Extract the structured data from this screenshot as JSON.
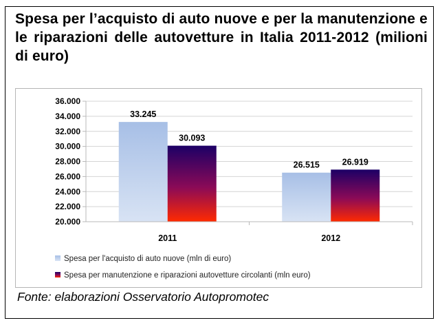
{
  "title": "Spesa per l’acquisto di auto nuove e per la manutenzione e le riparazioni delle autovetture in Italia 2011-2012 (milioni di euro)",
  "source": "Fonte: elaborazioni Osservatorio Autopromotec",
  "colors": {
    "series1_top": "#a7bfe6",
    "series1_bottom": "#d8e3f4",
    "series2_top": "#1c0066",
    "series2_mid": "#8b0a57",
    "series2_bottom": "#ff2a00",
    "axis": "#b8b8b8",
    "grid": "#d4d4d4"
  },
  "chart_data": {
    "type": "bar",
    "categories": [
      "2011",
      "2012"
    ],
    "series": [
      {
        "name": "Spesa per l'acquisto di auto nuove (mln di euro)",
        "values": [
          33245,
          26515
        ],
        "labels": [
          "33.245",
          "26.515"
        ]
      },
      {
        "name": "Spesa per manutenzione e riparazioni autovetture circolanti (mln euro)",
        "values": [
          30093,
          26919
        ],
        "labels": [
          "30.093",
          "26.919"
        ]
      }
    ],
    "ylim": [
      20000,
      36000
    ],
    "yticks": [
      20000,
      22000,
      24000,
      26000,
      28000,
      30000,
      32000,
      34000,
      36000
    ],
    "ytick_labels": [
      "20.000",
      "22.000",
      "24.000",
      "26.000",
      "28.000",
      "30.000",
      "32.000",
      "34.000",
      "36.000"
    ],
    "grid": true,
    "legend_position": "bottom-left",
    "title": "",
    "xlabel": "",
    "ylabel": ""
  }
}
